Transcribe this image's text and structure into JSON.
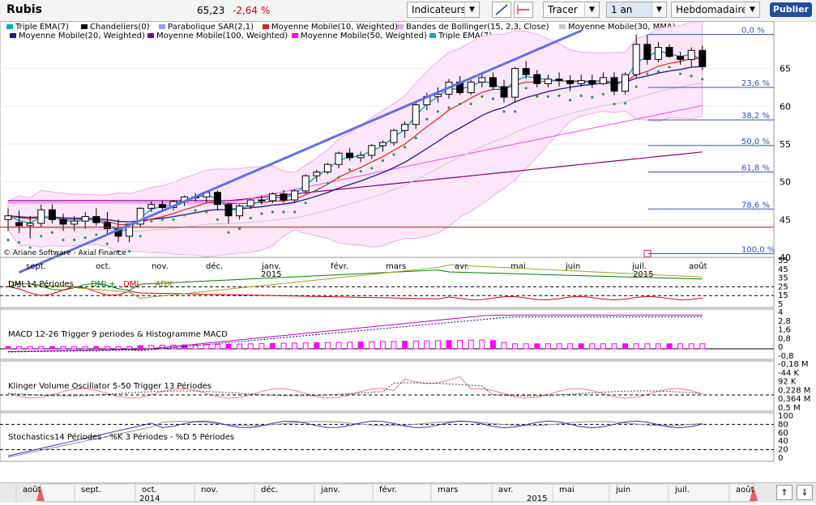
{
  "toolbar": {
    "ticker": "Rubis",
    "price": "65,23",
    "change": "-2,64 %",
    "indicators_label": "Indicateurs",
    "draw_label": "Tracer",
    "period_value": "1 an",
    "interval_value": "Hebdomadaire",
    "publish_label": "Publier"
  },
  "legend": [
    {
      "label": "Triple EMA(7)",
      "color": "#00b0b0"
    },
    {
      "label": "Chandeliers(0)",
      "color": "#000000"
    },
    {
      "label": "Parabolique SAR(2,1)",
      "color": "#9aa0f0"
    },
    {
      "label": "Moyenne Mobile(10, Weighted)",
      "color": "#e02020"
    },
    {
      "label": "Bandes de Bollinger(15, 2,3, Close)",
      "color": "#f0a0f0"
    },
    {
      "label": "Moyenne Mobile(30, MMA)",
      "color": "#c8c8c8"
    },
    {
      "label": "Moyenne Mobile(20, Weighted)",
      "color": "#1a1a90"
    },
    {
      "label": "Moyenne Mobile(100, Weighted)",
      "color": "#800080"
    },
    {
      "label": "Moyenne Mobile(50, Weighted)",
      "color": "#ff00ff"
    },
    {
      "label": "Triple EMA(7)",
      "color": "#00b0b0"
    }
  ],
  "copyright": "© Ariane Software - Axial Finance",
  "chart_data": [
    {
      "type": "candlestick",
      "ylim": [
        40,
        70
      ],
      "yticks": [
        "40",
        "45",
        "50",
        "55",
        "60",
        "65"
      ],
      "xticks": [
        "sept.",
        "oct.",
        "nov.",
        "déc.",
        "janv.",
        "févr.",
        "mars",
        "avr.",
        "mai",
        "juin",
        "juil.",
        "août"
      ],
      "year_labels": [
        "2015",
        "2015"
      ],
      "fibonacci": [
        "0,0 %",
        "23,6 %",
        "38,2 %",
        "50,0 %",
        "61,8 %",
        "78,6 %",
        "100,0 %"
      ],
      "fib_levels": [
        69.5,
        62.5,
        58.2,
        54.8,
        51.3,
        46.4,
        40.5
      ],
      "support_level": 44,
      "trendline": [
        [
          1,
          38
        ],
        [
          52,
          70
        ]
      ],
      "candles": [
        [
          45,
          46.5,
          43.5,
          45.5
        ],
        [
          44.6,
          46.2,
          43.2,
          44.2
        ],
        [
          44.2,
          45.5,
          42.5,
          44.5
        ],
        [
          44.5,
          47,
          44,
          46.3
        ],
        [
          46.3,
          47,
          44.5,
          45
        ],
        [
          45,
          45.8,
          43.5,
          44.4
        ],
        [
          44.4,
          45.5,
          43.5,
          44.8
        ],
        [
          44.8,
          46,
          43.8,
          45.4
        ],
        [
          45.4,
          46.5,
          44.2,
          44.6
        ],
        [
          44.6,
          46,
          43,
          43.8
        ],
        [
          43.8,
          45,
          42,
          42.8
        ],
        [
          42.8,
          44.5,
          42,
          44.4
        ],
        [
          44.4,
          46.6,
          44,
          46.5
        ],
        [
          46.5,
          47.4,
          46,
          47
        ],
        [
          47,
          47.5,
          46.2,
          46.6
        ],
        [
          46.6,
          47.6,
          46.2,
          47.4
        ],
        [
          47.4,
          48.2,
          46.8,
          48
        ],
        [
          48,
          48.5,
          47.4,
          48
        ],
        [
          48,
          48.8,
          47.2,
          48.6
        ],
        [
          48.6,
          48.9,
          46.2,
          47
        ],
        [
          47,
          47.2,
          44.5,
          45.5
        ],
        [
          45.5,
          47,
          45,
          46.8
        ],
        [
          46.8,
          47.8,
          46.4,
          47.6
        ],
        [
          47.6,
          48.2,
          47,
          47.5
        ],
        [
          47.5,
          48.6,
          47.2,
          48.4
        ],
        [
          48.4,
          48.9,
          47.2,
          47.6
        ],
        [
          47.6,
          49,
          47.2,
          48.8
        ],
        [
          48.8,
          51,
          48.4,
          50.8
        ],
        [
          50.8,
          51.6,
          50,
          51.3
        ],
        [
          51.3,
          52.5,
          51,
          52.3
        ],
        [
          52.3,
          54,
          51.8,
          53.8
        ],
        [
          53.8,
          54.5,
          52.8,
          53.2
        ],
        [
          53.2,
          54,
          52.6,
          53.5
        ],
        [
          53.5,
          55,
          53,
          54.8
        ],
        [
          54.8,
          55.5,
          54,
          55.2
        ],
        [
          55.2,
          57,
          54.8,
          56.8
        ],
        [
          56.8,
          58,
          55.8,
          57.6
        ],
        [
          57.6,
          60.5,
          57,
          60.2
        ],
        [
          60.2,
          61.8,
          59.5,
          61.3
        ],
        [
          61.3,
          62.5,
          60.5,
          61.6
        ],
        [
          61.6,
          63.6,
          61,
          63.2
        ],
        [
          63.2,
          64,
          61.5,
          61.8
        ],
        [
          61.8,
          63.5,
          61.5,
          63.2
        ],
        [
          63.2,
          64.2,
          62.5,
          63.8
        ],
        [
          63.8,
          64.5,
          62.2,
          62.6
        ],
        [
          62.6,
          63.5,
          60.5,
          61.2
        ],
        [
          61.2,
          65.2,
          60.5,
          65
        ],
        [
          65,
          66,
          63.6,
          64.2
        ],
        [
          64.2,
          64.8,
          62.5,
          63
        ],
        [
          63,
          64.2,
          62.5,
          63.6
        ],
        [
          63.6,
          64.5,
          62.6,
          63.4
        ],
        [
          63.4,
          64.1,
          62,
          63
        ],
        [
          63,
          64.2,
          62.6,
          63.4
        ],
        [
          63.4,
          64.2,
          62.4,
          63
        ],
        [
          63,
          64.5,
          62.8,
          63.8
        ],
        [
          63.8,
          64.5,
          61.5,
          62
        ],
        [
          62,
          64.5,
          61.6,
          64.2
        ],
        [
          64.2,
          69.5,
          63.8,
          68.2
        ],
        [
          68.2,
          69.5,
          65.5,
          66.2
        ],
        [
          66.2,
          68.5,
          65.8,
          67.8
        ],
        [
          67.8,
          68.2,
          66.4,
          66.6
        ],
        [
          66.6,
          67.2,
          65.5,
          66.2
        ],
        [
          66.2,
          67.8,
          65.2,
          67.4
        ],
        [
          67.4,
          68,
          64.8,
          65.23
        ]
      ]
    },
    {
      "type": "line",
      "title": "DMI 14 Périodes",
      "series": [
        {
          "name": "DMI +",
          "color": "#008000"
        },
        {
          "name": "DMI -",
          "color": "#e00000"
        },
        {
          "name": "ADX",
          "color": "#808000"
        }
      ],
      "yticks": [
        "5",
        "15",
        "25",
        "35",
        "45",
        "55"
      ]
    },
    {
      "type": "bar",
      "title": "MACD 12-26   Trigger 9 periodes & Histogramme MACD",
      "yticks": [
        "-0,8",
        "0",
        "0,8",
        "1,6",
        "2,8",
        "4"
      ]
    },
    {
      "type": "line",
      "title": "Klinger Volume Oscillator 5-50   Trigger 13 Périodes",
      "yticks": [
        "0,5 M",
        "0,364 M",
        "0,228 M",
        "92 K",
        "-44 K",
        "-0,18 M"
      ]
    },
    {
      "type": "line",
      "title": "Stochastics14 Périodes  -  %K 3 Périodes  -  %D 5 Périodes",
      "yticks": [
        "0",
        "20",
        "40",
        "60",
        "80",
        "100"
      ]
    }
  ],
  "navigator": {
    "months": [
      "août",
      "sept.",
      "oct.",
      "nov.",
      "déc.",
      "janv.",
      "févr.",
      "mars",
      "avr.",
      "mai",
      "juin",
      "juil.",
      "août"
    ],
    "years": [
      "2014",
      "2015"
    ]
  }
}
